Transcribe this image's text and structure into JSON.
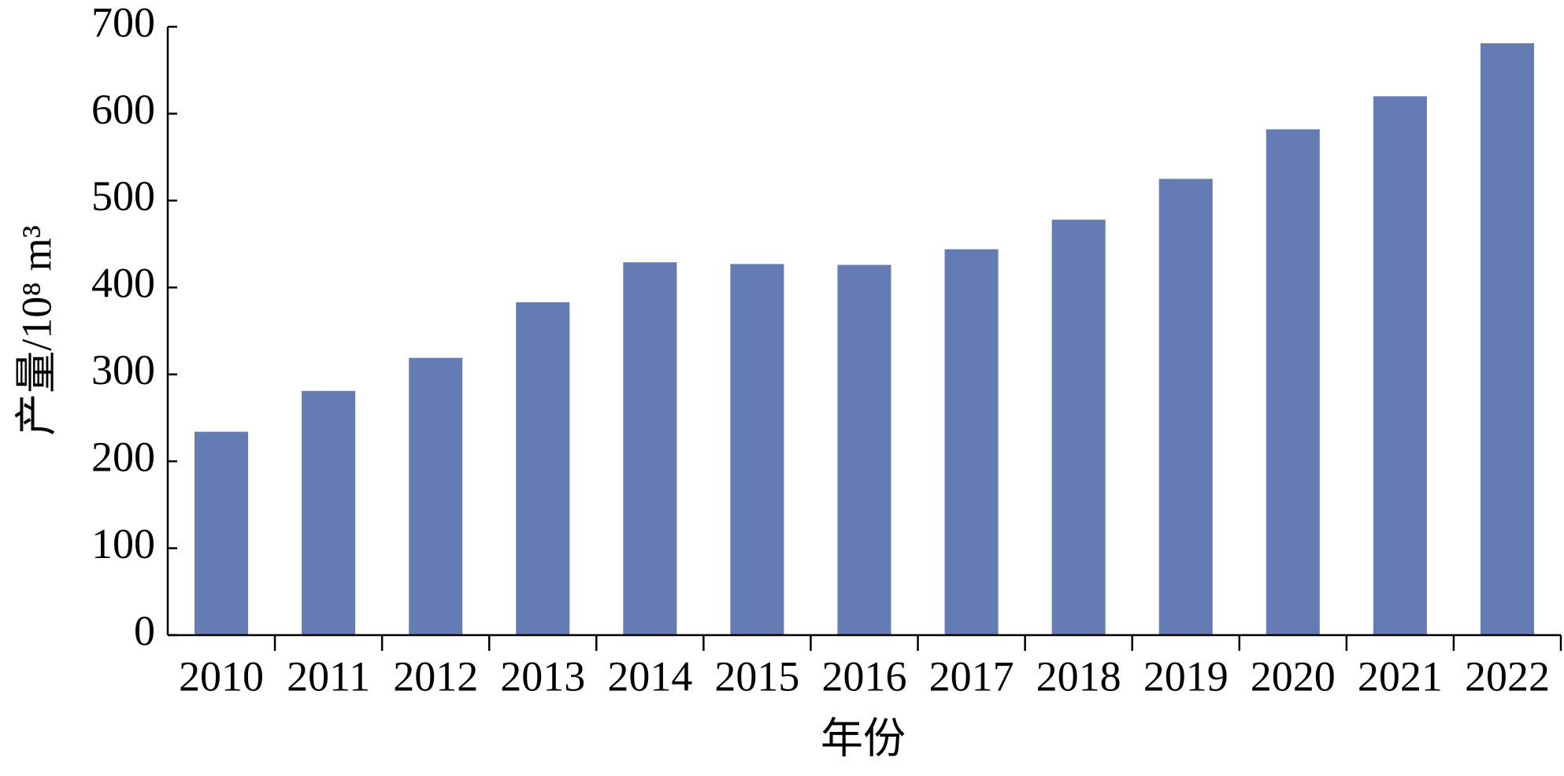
{
  "chart_data": {
    "type": "bar",
    "x_label": "年份",
    "y_label": "产量/10⁸ m³",
    "categories": [
      "2010",
      "2011",
      "2012",
      "2013",
      "2014",
      "2015",
      "2016",
      "2017",
      "2018",
      "2019",
      "2020",
      "2021",
      "2022"
    ],
    "values": [
      234,
      281,
      319,
      383,
      429,
      427,
      426,
      444,
      478,
      525,
      582,
      620,
      681
    ],
    "color": "#657bb4",
    "ylim": [
      0,
      700
    ],
    "yticks": [
      0,
      100,
      200,
      300,
      400,
      500,
      600,
      700
    ],
    "grid": false
  }
}
